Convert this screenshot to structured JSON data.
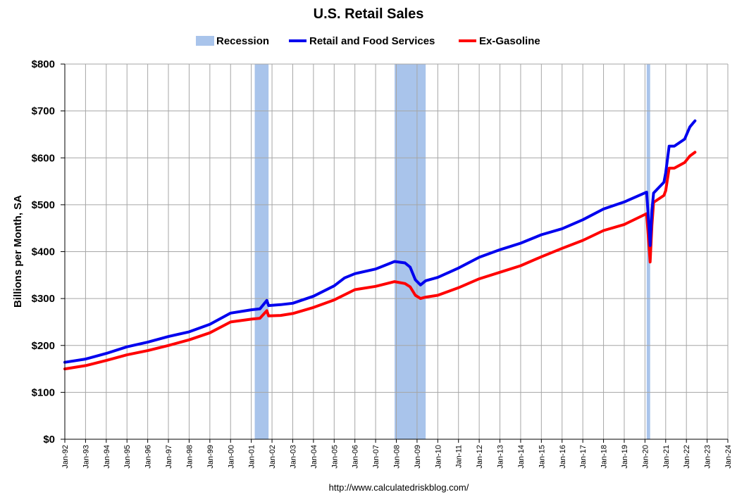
{
  "chart_data": {
    "type": "line",
    "title": "U.S. Retail Sales",
    "xlabel": "",
    "ylabel": "Billions per Month, SA",
    "source": "http://www.calculatedriskblog.com/",
    "ylim": [
      0,
      800
    ],
    "xlim": [
      "1992-01",
      "2024-01"
    ],
    "grid": true,
    "legend_position": "top",
    "y_ticks": [
      "$0",
      "$100",
      "$200",
      "$300",
      "$400",
      "$500",
      "$600",
      "$700",
      "$800"
    ],
    "x_ticks": [
      "Jan-92",
      "Jan-93",
      "Jan-94",
      "Jan-95",
      "Jan-96",
      "Jan-97",
      "Jan-98",
      "Jan-99",
      "Jan-00",
      "Jan-01",
      "Jan-02",
      "Jan-03",
      "Jan-04",
      "Jan-05",
      "Jan-06",
      "Jan-07",
      "Jan-08",
      "Jan-09",
      "Jan-10",
      "Jan-11",
      "Jan-12",
      "Jan-13",
      "Jan-14",
      "Jan-15",
      "Jan-16",
      "Jan-17",
      "Jan-18",
      "Jan-19",
      "Jan-20",
      "Jan-21",
      "Jan-22",
      "Jan-23",
      "Jan-24"
    ],
    "recessions": {
      "name": "Recession",
      "color": "#a9c4eb",
      "periods": [
        [
          "2001-03",
          "2001-11"
        ],
        [
          "2007-12",
          "2009-06"
        ],
        [
          "2020-02",
          "2020-04"
        ]
      ]
    },
    "series": [
      {
        "name": "Retail and Food Services",
        "color": "#0000ee",
        "points": [
          [
            "1992-01",
            164
          ],
          [
            "1993-01",
            171
          ],
          [
            "1994-01",
            183
          ],
          [
            "1995-01",
            197
          ],
          [
            "1996-01",
            207
          ],
          [
            "1997-01",
            219
          ],
          [
            "1998-01",
            229
          ],
          [
            "1999-01",
            245
          ],
          [
            "2000-01",
            269
          ],
          [
            "2001-01",
            276
          ],
          [
            "2001-06",
            278
          ],
          [
            "2001-10",
            296
          ],
          [
            "2001-11",
            285
          ],
          [
            "2002-06",
            287
          ],
          [
            "2003-01",
            290
          ],
          [
            "2004-01",
            305
          ],
          [
            "2005-01",
            327
          ],
          [
            "2005-07",
            344
          ],
          [
            "2006-01",
            353
          ],
          [
            "2007-01",
            363
          ],
          [
            "2007-12",
            379
          ],
          [
            "2008-06",
            376
          ],
          [
            "2008-09",
            367
          ],
          [
            "2008-12",
            340
          ],
          [
            "2009-03",
            329
          ],
          [
            "2009-06",
            338
          ],
          [
            "2010-01",
            345
          ],
          [
            "2011-01",
            365
          ],
          [
            "2012-01",
            388
          ],
          [
            "2013-01",
            404
          ],
          [
            "2014-01",
            418
          ],
          [
            "2015-01",
            436
          ],
          [
            "2016-01",
            449
          ],
          [
            "2017-01",
            468
          ],
          [
            "2018-01",
            491
          ],
          [
            "2019-01",
            506
          ],
          [
            "2020-02",
            527
          ],
          [
            "2020-04",
            413
          ],
          [
            "2020-05",
            487
          ],
          [
            "2020-06",
            525
          ],
          [
            "2020-12",
            548
          ],
          [
            "2021-01",
            568
          ],
          [
            "2021-03",
            625
          ],
          [
            "2021-06",
            625
          ],
          [
            "2021-12",
            640
          ],
          [
            "2022-03",
            666
          ],
          [
            "2022-06",
            679
          ]
        ]
      },
      {
        "name": "Ex-Gasoline",
        "color": "#ff0000",
        "points": [
          [
            "1992-01",
            150
          ],
          [
            "1993-01",
            157
          ],
          [
            "1994-01",
            168
          ],
          [
            "1995-01",
            180
          ],
          [
            "1996-01",
            189
          ],
          [
            "1997-01",
            200
          ],
          [
            "1998-01",
            212
          ],
          [
            "1999-01",
            227
          ],
          [
            "2000-01",
            250
          ],
          [
            "2001-01",
            256
          ],
          [
            "2001-06",
            258
          ],
          [
            "2001-10",
            274
          ],
          [
            "2001-11",
            263
          ],
          [
            "2002-06",
            264
          ],
          [
            "2003-01",
            268
          ],
          [
            "2004-01",
            281
          ],
          [
            "2005-01",
            297
          ],
          [
            "2006-01",
            319
          ],
          [
            "2007-01",
            326
          ],
          [
            "2007-12",
            336
          ],
          [
            "2008-06",
            332
          ],
          [
            "2008-09",
            325
          ],
          [
            "2008-12",
            307
          ],
          [
            "2009-03",
            300
          ],
          [
            "2009-06",
            303
          ],
          [
            "2010-01",
            307
          ],
          [
            "2011-01",
            323
          ],
          [
            "2012-01",
            342
          ],
          [
            "2013-01",
            356
          ],
          [
            "2014-01",
            370
          ],
          [
            "2015-01",
            389
          ],
          [
            "2016-01",
            407
          ],
          [
            "2017-01",
            424
          ],
          [
            "2018-01",
            445
          ],
          [
            "2019-01",
            458
          ],
          [
            "2020-02",
            481
          ],
          [
            "2020-04",
            378
          ],
          [
            "2020-05",
            455
          ],
          [
            "2020-06",
            505
          ],
          [
            "2020-12",
            520
          ],
          [
            "2021-01",
            530
          ],
          [
            "2021-03",
            578
          ],
          [
            "2021-06",
            578
          ],
          [
            "2021-12",
            590
          ],
          [
            "2022-03",
            604
          ],
          [
            "2022-06",
            612
          ]
        ]
      }
    ]
  }
}
